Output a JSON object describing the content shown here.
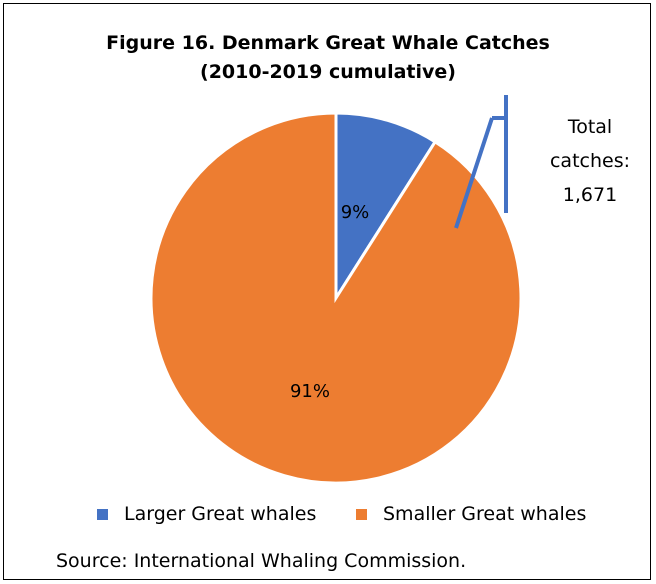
{
  "chart_data": {
    "type": "pie",
    "title": "Figure 16. Denmark Great Whale Catches",
    "subtitle": "(2010-2019 cumulative)",
    "categories": [
      "Larger Great whales",
      "Smaller Great whales"
    ],
    "values": [
      9,
      91
    ],
    "value_labels": [
      "9%",
      "91%"
    ],
    "colors": [
      "#4472c4",
      "#ed7d31"
    ],
    "annotation": {
      "line1": "Total",
      "line2": "catches:",
      "line3": "1,671",
      "callout_color": "#4472c4"
    },
    "legend_position": "bottom"
  },
  "source": "Source: International Whaling Commission."
}
